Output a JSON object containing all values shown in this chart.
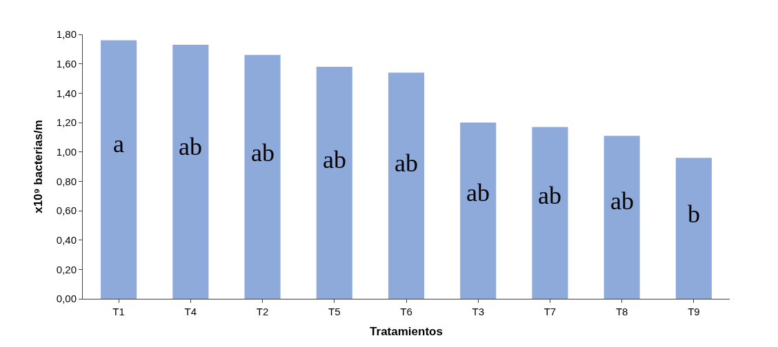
{
  "chart_data": {
    "type": "bar",
    "xlabel": "Tratamientos",
    "ylabel": "x10⁹ bacterias/m",
    "categories": [
      "T1",
      "T4",
      "T2",
      "T5",
      "T6",
      "T3",
      "T7",
      "T8",
      "T9"
    ],
    "values": [
      1.76,
      1.73,
      1.66,
      1.58,
      1.54,
      1.2,
      1.17,
      1.11,
      0.96
    ],
    "color": "#8eaadb",
    "ylim": [
      0,
      1.8
    ],
    "yticks": [
      {
        "value": 0,
        "label": "0,00"
      },
      {
        "value": 0.2,
        "label": "0,20"
      },
      {
        "value": 0.4,
        "label": "0,40"
      },
      {
        "value": 0.6,
        "label": "0,60"
      },
      {
        "value": 0.8,
        "label": "0,80"
      },
      {
        "value": 1.0,
        "label": "1,00"
      },
      {
        "value": 1.2,
        "label": "1,20"
      },
      {
        "value": 1.4,
        "label": "1,40"
      },
      {
        "value": 1.6,
        "label": "1,60"
      },
      {
        "value": 1.8,
        "label": "1,80"
      }
    ],
    "annotations": [
      "a",
      "ab",
      "ab",
      "ab",
      "ab",
      "ab",
      "ab",
      "ab",
      "b"
    ]
  }
}
